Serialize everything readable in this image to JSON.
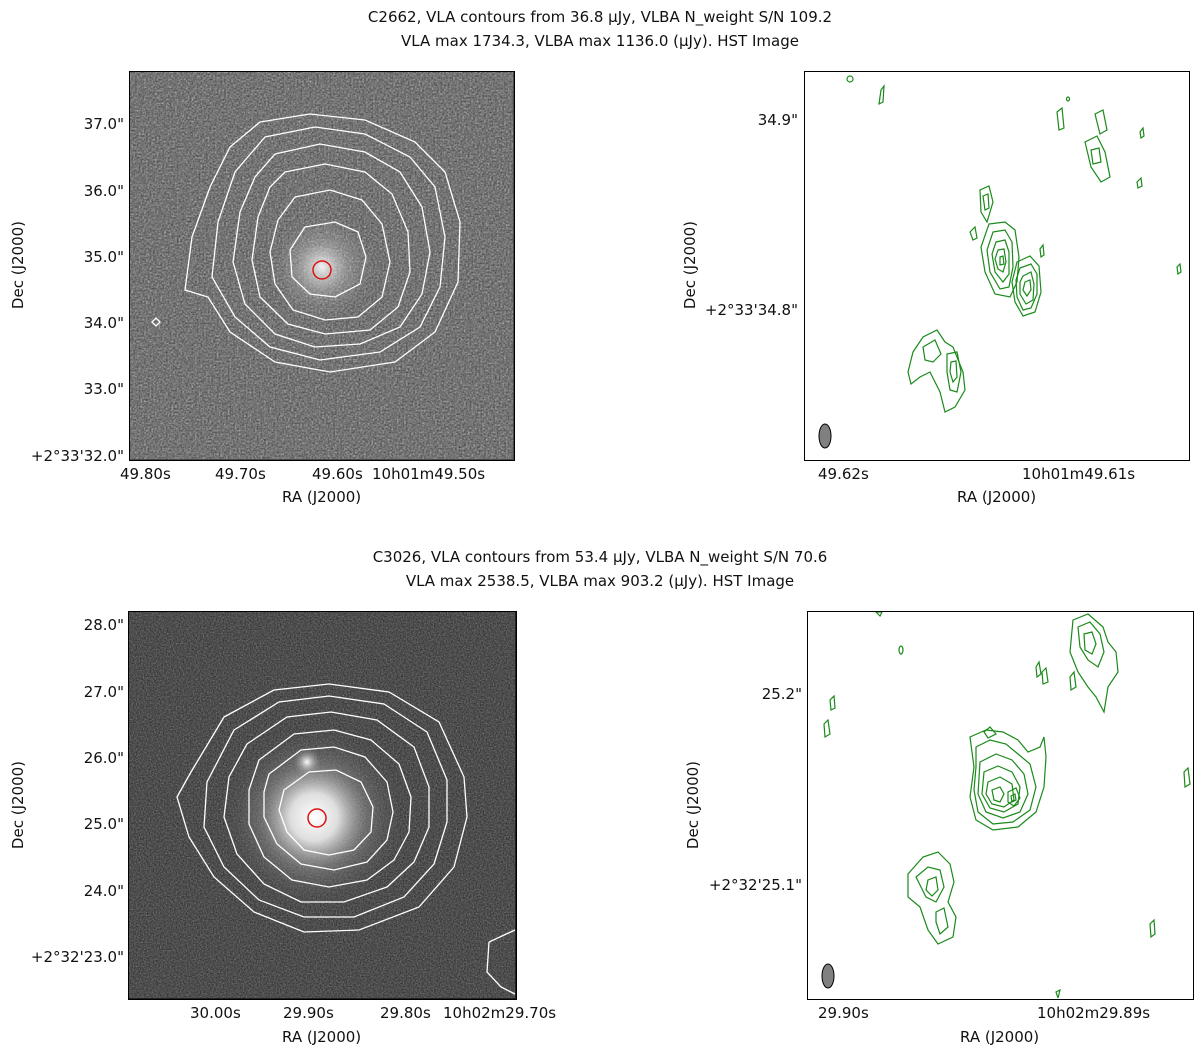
{
  "figures": [
    {
      "title_line1": "C2662, VLA contours from 36.8 μJy, VLBA N_weight S/N 109.2",
      "title_line2": "VLA max 1734.3, VLBA max 1136.0 (μJy). HST Image",
      "left": {
        "x_ticks": [
          "49.80s",
          "49.70s",
          "49.60s",
          "10h01m49.50s"
        ],
        "y_ticks": [
          "37.0\"",
          "36.0\"",
          "35.0\"",
          "34.0\"",
          "33.0\"",
          "+2°33'32.0\""
        ],
        "xlabel": "RA (J2000)",
        "ylabel": "Dec (J2000)"
      },
      "right": {
        "x_ticks": [
          "49.62s",
          "10h01m49.61s"
        ],
        "y_ticks": [
          "34.9\"",
          "+2°33'34.8\""
        ],
        "xlabel": "RA (J2000)",
        "ylabel": "Dec (J2000)"
      }
    },
    {
      "title_line1": "C3026, VLA contours from 53.4 μJy, VLBA N_weight S/N 70.6",
      "title_line2": "VLA max 2538.5, VLBA max 903.2 (μJy). HST Image",
      "left": {
        "x_ticks": [
          "30.00s",
          "29.90s",
          "29.80s",
          "10h02m29.70s"
        ],
        "y_ticks": [
          "28.0\"",
          "27.0\"",
          "26.0\"",
          "25.0\"",
          "24.0\"",
          "+2°32'23.0\""
        ],
        "xlabel": "RA (J2000)",
        "ylabel": "Dec (J2000)"
      },
      "right": {
        "x_ticks": [
          "29.90s",
          "10h02m29.89s"
        ],
        "y_ticks": [
          "25.2\"",
          "+2°32'25.1\""
        ],
        "xlabel": "RA (J2000)",
        "ylabel": "Dec (J2000)"
      }
    }
  ],
  "colors": {
    "vla_contour": "#ffffff",
    "vlba_contour": "#1a8a1a",
    "marker": "#dd1111",
    "beam": "#808080"
  }
}
